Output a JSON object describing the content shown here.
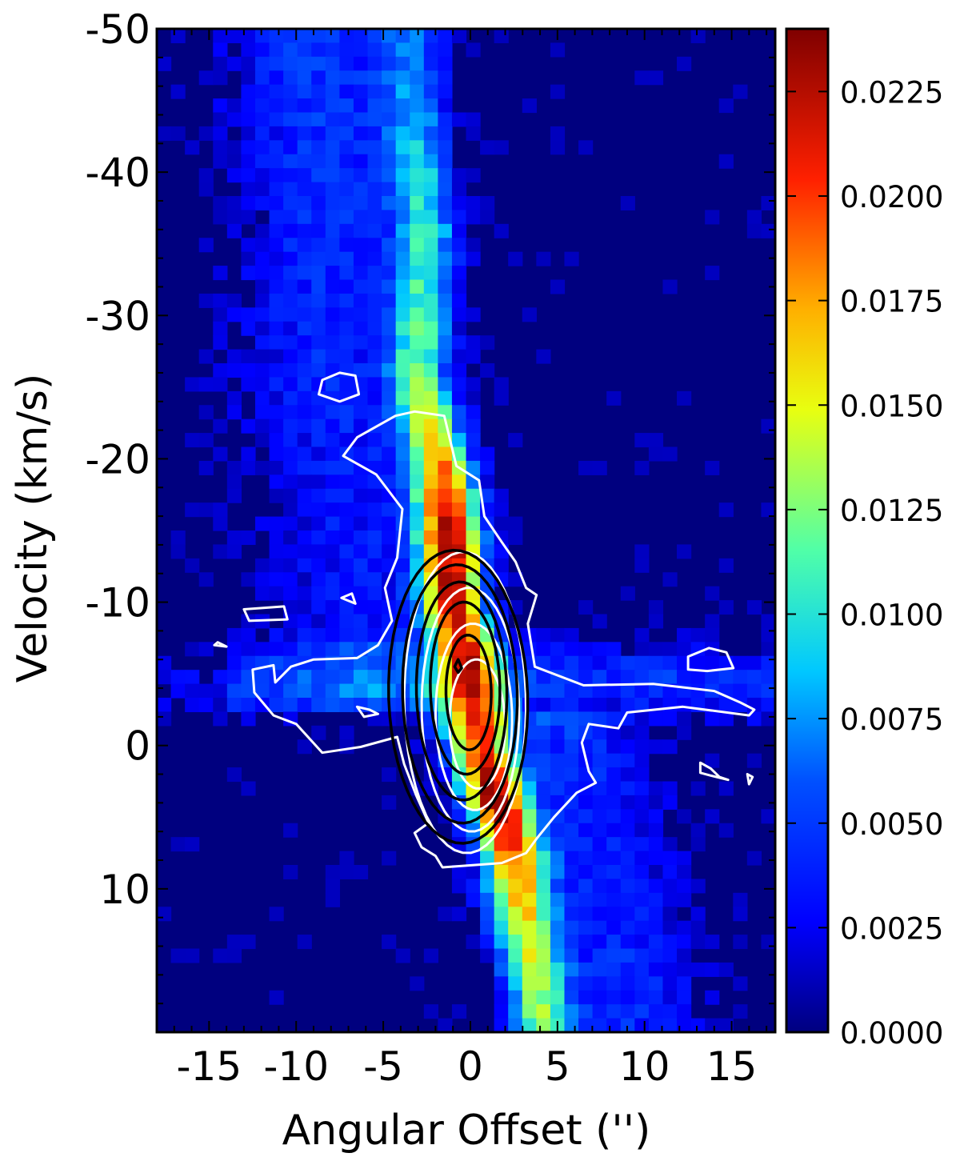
{
  "chart_data": {
    "type": "heatmap",
    "title": "",
    "xlabel": "Angular Offset ('')",
    "ylabel": "Velocity (km/s)",
    "xlim": [
      -18,
      17.5
    ],
    "ylim": [
      -50,
      20
    ],
    "y_axis_inverted": true,
    "x_ticks": [
      -15,
      -10,
      -5,
      0,
      5,
      10,
      15
    ],
    "x_tick_labels": [
      "-15",
      "-10",
      "-5",
      "0",
      "5",
      "10",
      "15"
    ],
    "y_ticks": [
      -50,
      -40,
      -30,
      -20,
      -10,
      0,
      10
    ],
    "y_tick_labels": [
      "-50",
      "-40",
      "-30",
      "-20",
      "-10",
      "0",
      "10"
    ],
    "colormap": "jet",
    "colorbar": {
      "range": [
        0.0,
        0.024
      ],
      "ticks": [
        0.0,
        0.0025,
        0.005,
        0.0075,
        0.01,
        0.0125,
        0.015,
        0.0175,
        0.02,
        0.0225
      ],
      "tick_labels": [
        "0.0000",
        "0.0025",
        "0.0050",
        "0.0075",
        "0.0100",
        "0.0125",
        "0.0150",
        "0.0175",
        "0.0200",
        "0.0225"
      ]
    },
    "emission_ridge": {
      "description_values": [
        {
          "velocity": -48,
          "offset": -3.5,
          "intensity": 0.006
        },
        {
          "velocity": -36,
          "offset": -2.5,
          "intensity": 0.009
        },
        {
          "velocity": -26,
          "offset": -3.0,
          "intensity": 0.011
        },
        {
          "velocity": -18,
          "offset": -1.5,
          "intensity": 0.019
        },
        {
          "velocity": -15,
          "offset": -1.2,
          "intensity": 0.023
        },
        {
          "velocity": -10,
          "offset": -1.0,
          "intensity": 0.021
        },
        {
          "velocity": -5,
          "offset": 0.0,
          "intensity": 0.018
        },
        {
          "velocity": 0,
          "offset": 0.5,
          "intensity": 0.019
        },
        {
          "velocity": 4,
          "offset": 1.5,
          "intensity": 0.023
        },
        {
          "velocity": 8,
          "offset": 2.5,
          "intensity": 0.018
        },
        {
          "velocity": 12,
          "offset": 3.0,
          "intensity": 0.015
        },
        {
          "velocity": 18,
          "offset": 4.0,
          "intensity": 0.012
        }
      ]
    },
    "contours": {
      "white": "second tracer, outermost level outlines a cross-shaped region centered near offset 0, velocity -4",
      "black": "third tracer, nested ellipses centered near offset 0, velocity -3"
    }
  },
  "colors": {
    "colormap_stops": [
      "#00007f",
      "#0000ff",
      "#007fff",
      "#00ffff",
      "#7fff7f",
      "#ffff00",
      "#ff7f00",
      "#ff0000",
      "#7f0000"
    ],
    "white_contour": "#ffffff",
    "black_contour": "#000000"
  }
}
